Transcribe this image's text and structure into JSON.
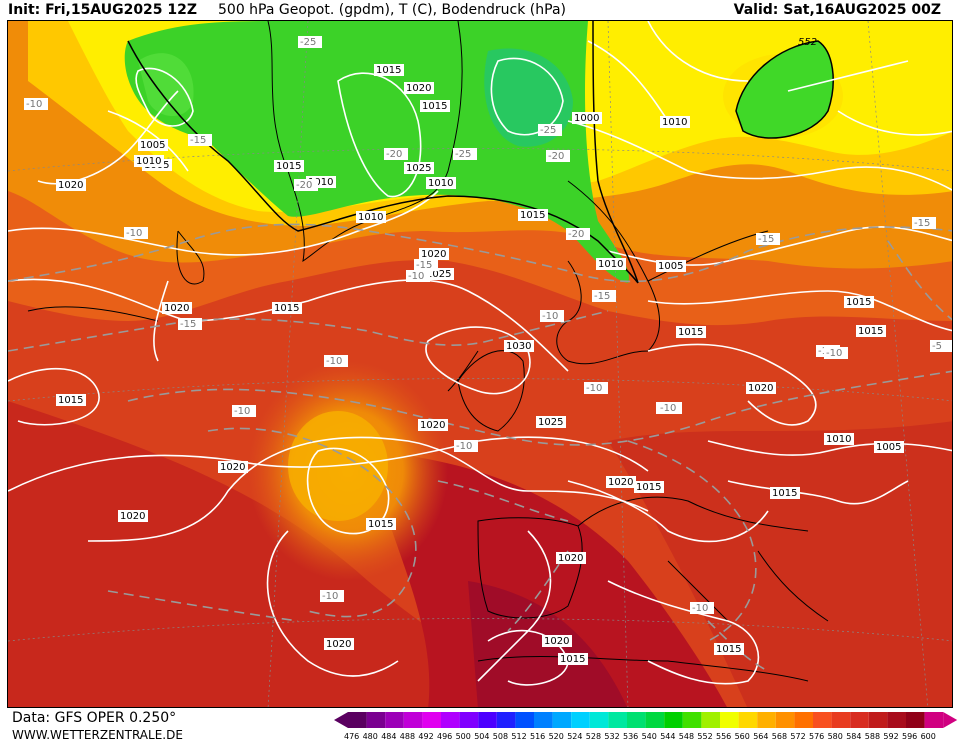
{
  "header": {
    "init": "Init: Fri,15AUG2025 12Z",
    "title": "500 hPa Geopot. (gpdm), T (C), Bodendruck (hPa)",
    "valid": "Valid: Sat,16AUG2025 00Z"
  },
  "footer": {
    "data_source": "Data: GFS OPER 0.250°",
    "website": "WWW.WETTERZENTRALE.DE"
  },
  "legend": {
    "values": [
      "476",
      "480",
      "484",
      "488",
      "492",
      "496",
      "500",
      "504",
      "508",
      "512",
      "516",
      "520",
      "524",
      "528",
      "532",
      "536",
      "540",
      "544",
      "548",
      "552",
      "556",
      "560",
      "564",
      "568",
      "572",
      "576",
      "580",
      "584",
      "588",
      "592",
      "596",
      "600"
    ],
    "colors": [
      "#5a0060",
      "#7a0090",
      "#9c00b8",
      "#c000d8",
      "#e000f0",
      "#b000ff",
      "#8000ff",
      "#4c00ff",
      "#2020ff",
      "#0050ff",
      "#0080ff",
      "#00a8ff",
      "#00d0ff",
      "#00e8d8",
      "#00e8a0",
      "#00e070",
      "#00d840",
      "#00d000",
      "#40e000",
      "#a0f000",
      "#f0ff00",
      "#ffd800",
      "#ffb000",
      "#ff9000",
      "#ff7000",
      "#f85020",
      "#e83c20",
      "#d82c20",
      "#c01c1c",
      "#a80c1c",
      "#900018",
      "#d00080"
    ]
  },
  "map": {
    "contour_552_label": "552",
    "pressure_labels": [
      {
        "t": "1005"
      },
      {
        "t": "1015"
      },
      {
        "t": "1020"
      },
      {
        "t": "1015"
      },
      {
        "t": "1025"
      },
      {
        "t": "1010"
      },
      {
        "t": "1000"
      },
      {
        "t": "1010"
      },
      {
        "t": "1005"
      },
      {
        "t": "1010"
      },
      {
        "t": "1020"
      },
      {
        "t": "1010"
      },
      {
        "t": "1010"
      },
      {
        "t": "1015"
      },
      {
        "t": "1015"
      },
      {
        "t": "1020"
      },
      {
        "t": "1025"
      },
      {
        "t": "1010"
      },
      {
        "t": "1005"
      },
      {
        "t": "1015"
      },
      {
        "t": "1015"
      },
      {
        "t": "1030"
      },
      {
        "t": "1015"
      },
      {
        "t": "1020"
      },
      {
        "t": "1020"
      },
      {
        "t": "1025"
      },
      {
        "t": "1015"
      },
      {
        "t": "1020"
      },
      {
        "t": "1020"
      },
      {
        "t": "1020"
      },
      {
        "t": "1015"
      },
      {
        "t": "1010"
      },
      {
        "t": "1005"
      },
      {
        "t": "1015"
      },
      {
        "t": "1020"
      },
      {
        "t": "1015"
      },
      {
        "t": "1020"
      },
      {
        "t": "1020"
      },
      {
        "t": "1015"
      },
      {
        "t": "1020"
      },
      {
        "t": "1015"
      },
      {
        "t": "1015"
      }
    ],
    "temp_labels": [
      "-10",
      "-15",
      "-25",
      "-25",
      "-20",
      "-20",
      "-25",
      "-20",
      "-20",
      "-10",
      "-15",
      "-15",
      "-15",
      "-10",
      "-15",
      "-10",
      "-10",
      "-10",
      "-10",
      "-10",
      "-10",
      "-10",
      "-10",
      "-15",
      "-15",
      "-5",
      "-10",
      "-10"
    ]
  }
}
